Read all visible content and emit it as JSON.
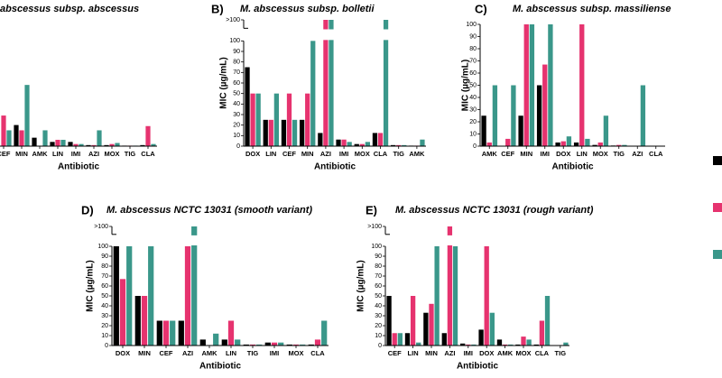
{
  "chart_data": [
    {
      "type": "bar",
      "title": "abscessus subsp. abscessus",
      "xlabel": "Antibiotic",
      "categories": [
        "CEF",
        "MIN",
        "AMK",
        "LIN",
        "IMI",
        "AZI",
        "MOX",
        "TIG",
        "CLA"
      ],
      "series": [
        {
          "color": "#000000",
          "values": [
            0,
            20,
            8,
            4,
            4,
            1,
            1,
            0.5,
            1
          ]
        },
        {
          "color": "#e6336f",
          "values": [
            29,
            15,
            0,
            6,
            2,
            1,
            2,
            0.5,
            19
          ]
        },
        {
          "color": "#3a978a",
          "values": [
            15,
            58,
            15,
            6,
            2,
            15,
            3,
            0.5,
            2
          ]
        }
      ],
      "ylim": [
        0,
        100
      ]
    },
    {
      "type": "bar",
      "panel_label": "B)",
      "title": "M. abscessus subsp. bolletii",
      "xlabel": "Antibiotic",
      "ylabel": "MIC (µg/mL)",
      "categories": [
        "DOX",
        "LIN",
        "CEF",
        "MIN",
        "AZI",
        "IMI",
        "MOX",
        "CLA",
        "TIG",
        "AMK"
      ],
      "series": [
        {
          "color": "#000000",
          "values": [
            75,
            25,
            25,
            25,
            12.5,
            6.25,
            2,
            12.5,
            1,
            0.5
          ]
        },
        {
          "color": "#e6336f",
          "values": [
            50,
            25,
            50,
            50,
            120,
            6.25,
            2,
            12.5,
            1,
            0.5
          ]
        },
        {
          "color": "#3a978a",
          "values": [
            50,
            50,
            25,
            100,
            120,
            4,
            4,
            120,
            1,
            6.25
          ]
        }
      ],
      "ylim": [
        0,
        120
      ],
      "yticks": [
        0,
        10,
        20,
        30,
        40,
        50,
        60,
        70,
        80,
        90,
        100,
        {
          "value": 120,
          "label": ">100"
        }
      ]
    },
    {
      "type": "bar",
      "panel_label": "C)",
      "title": "M. abscessus subsp. massiliense",
      "xlabel": "Antibiotic",
      "ylabel": "MIC (µg/mL)",
      "categories": [
        "AMK",
        "CEF",
        "MIN",
        "IMI",
        "DOX",
        "LIN",
        "MOX",
        "TIG",
        "AZI",
        "CLA"
      ],
      "series": [
        {
          "color": "#000000",
          "values": [
            25,
            0,
            25,
            50,
            3,
            3,
            1,
            0.5,
            0,
            0
          ]
        },
        {
          "color": "#e6336f",
          "values": [
            3,
            6,
            100,
            67,
            4,
            100,
            3,
            1,
            0,
            0
          ]
        },
        {
          "color": "#3a978a",
          "values": [
            50,
            50,
            100,
            100,
            8,
            6,
            25,
            1,
            50,
            0
          ]
        }
      ],
      "ylim": [
        0,
        100
      ],
      "yticks": [
        0,
        10,
        20,
        30,
        40,
        50,
        60,
        70,
        80,
        90,
        100
      ]
    },
    {
      "type": "bar",
      "panel_label": "D)",
      "title": "M. abscessus NCTC 13031 (smooth variant)",
      "xlabel": "Antibiotic",
      "ylabel": "MIC (µg/mL)",
      "categories": [
        "DOX",
        "MIN",
        "CEF",
        "AZI",
        "AMK",
        "LIN",
        "TIG",
        "IMI",
        "MOX",
        "CLA"
      ],
      "series": [
        {
          "color": "#000000",
          "values": [
            100,
            50,
            25,
            25,
            6,
            6,
            1,
            3,
            1,
            1
          ]
        },
        {
          "color": "#e6336f",
          "values": [
            67,
            50,
            25,
            100,
            0,
            25,
            1,
            3,
            1,
            6
          ]
        },
        {
          "color": "#3a978a",
          "values": [
            100,
            100,
            25,
            120,
            12,
            6,
            1,
            3,
            1,
            25
          ]
        }
      ],
      "ylim": [
        0,
        120
      ],
      "yticks": [
        0,
        10,
        20,
        30,
        40,
        50,
        60,
        70,
        80,
        90,
        100,
        {
          "value": 120,
          "label": ">100"
        }
      ]
    },
    {
      "type": "bar",
      "panel_label": "E)",
      "title": "M. abscessus NCTC 13031 (rough variant)",
      "xlabel": "Antibiotic",
      "ylabel": "MIC (µg/mL)",
      "categories": [
        "CEF",
        "LIN",
        "MIN",
        "AZI",
        "IMI",
        "DOX",
        "AMK",
        "MOX",
        "CLA",
        "TIG"
      ],
      "series": [
        {
          "color": "#000000",
          "values": [
            50,
            12.5,
            33,
            12.5,
            2,
            16,
            6,
            1,
            1,
            0
          ]
        },
        {
          "color": "#e6336f",
          "values": [
            12.5,
            50,
            42,
            120,
            1,
            100,
            1,
            9,
            25,
            0
          ]
        },
        {
          "color": "#3a978a",
          "values": [
            12.5,
            3,
            100,
            100,
            1,
            33,
            1,
            6,
            50,
            3
          ]
        }
      ],
      "ylim": [
        0,
        120
      ],
      "yticks": [
        0,
        10,
        20,
        30,
        40,
        50,
        60,
        70,
        80,
        90,
        100,
        {
          "value": 120,
          "label": ">100"
        }
      ]
    }
  ]
}
